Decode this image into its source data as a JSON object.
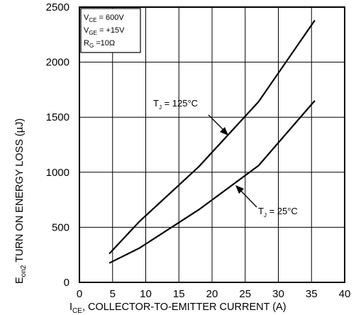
{
  "chart_data": {
    "type": "line",
    "xlim": [
      0,
      40
    ],
    "ylim": [
      0,
      2500
    ],
    "x_ticks": [
      0,
      5,
      10,
      15,
      20,
      25,
      30,
      35,
      40
    ],
    "y_ticks": [
      0,
      500,
      1000,
      1500,
      2000,
      2500
    ],
    "x_tick_labels": [
      "0",
      "5",
      "10",
      "15",
      "20",
      "25",
      "30",
      "35",
      "40"
    ],
    "y_tick_labels": [
      "0",
      "500",
      "1000",
      "1500",
      "2000",
      "2500"
    ],
    "grid": true,
    "xlabel": {
      "main": "I",
      "sub": "CE",
      "rest": ", COLLECTOR-TO-EMITTER CURRENT (A)"
    },
    "ylabel": {
      "main": "E",
      "sub": "on2",
      "rest": " TURN ON ENERGY LOSS (µJ)"
    },
    "conditions": [
      {
        "main": "V",
        "sub": "CE",
        "rest": " =  600V"
      },
      {
        "main": "V",
        "sub": "GE",
        "rest": " =  +15V"
      },
      {
        "main": "R",
        "sub": "G",
        "rest": " =10Ω"
      }
    ],
    "series": [
      {
        "label_main": "T",
        "label_sub": "J",
        "label_rest": " = 125°C",
        "points": [
          [
            4.5,
            260
          ],
          [
            9,
            550
          ],
          [
            18,
            1050
          ],
          [
            27,
            1640
          ],
          [
            35.5,
            2380
          ]
        ]
      },
      {
        "label_main": "T",
        "label_sub": "J",
        "label_rest": " = 25°C",
        "points": [
          [
            4.5,
            175
          ],
          [
            9,
            310
          ],
          [
            18,
            660
          ],
          [
            27,
            1060
          ],
          [
            35.5,
            1650
          ]
        ]
      }
    ]
  }
}
